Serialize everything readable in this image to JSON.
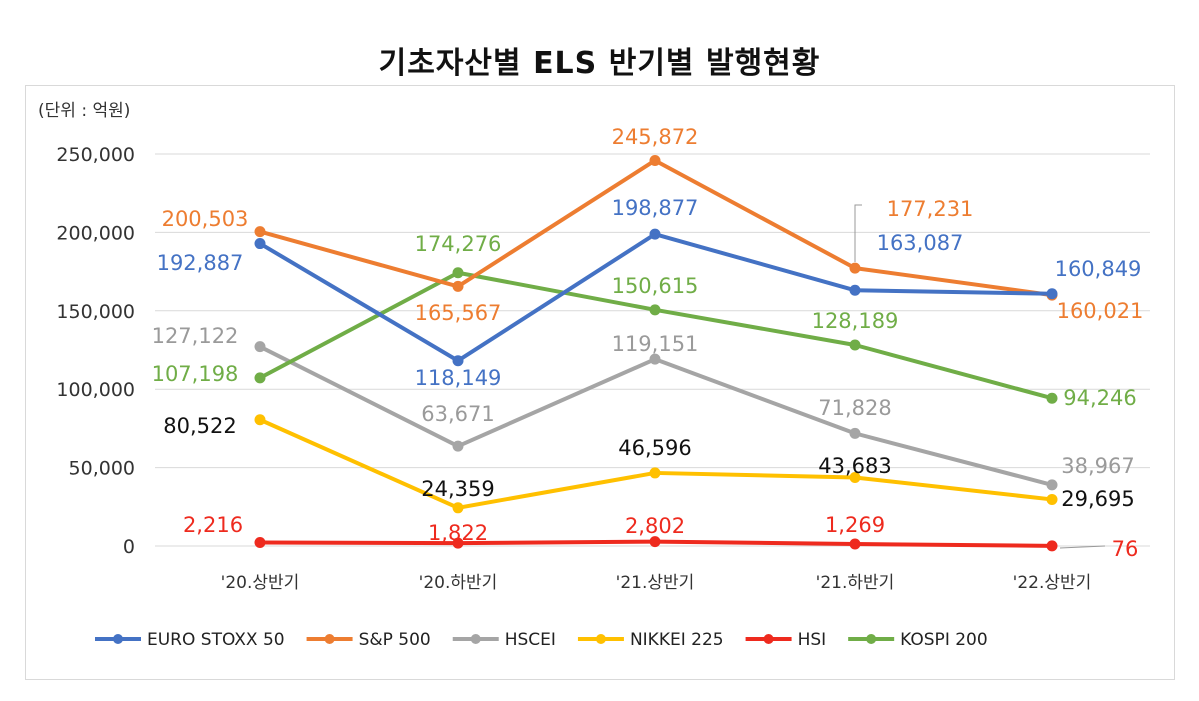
{
  "chart_data": {
    "type": "line",
    "title": "기초자산별 ELS 반기별 발행현황",
    "unit_label": "(단위 : 억원)",
    "categories": [
      "'20.상반기",
      "'20.하반기",
      "'21.상반기",
      "'21.하반기",
      "'22.상반기"
    ],
    "ylim": [
      0,
      250000
    ],
    "yticks": [
      "0",
      "50,000",
      "100,000",
      "150,000",
      "200,000",
      "250,000"
    ],
    "grid": true,
    "legend_position": "bottom",
    "series": [
      {
        "name": "EURO STOXX 50",
        "color": "#4472c4",
        "label_color": "#4472c4",
        "values": [
          192887,
          118149,
          198877,
          163087,
          160849
        ],
        "labels": [
          "192,887",
          "118,149",
          "198,877",
          "163,087",
          "160,849"
        ]
      },
      {
        "name": "S&P 500",
        "color": "#ed7d31",
        "label_color": "#ed7d31",
        "values": [
          200503,
          165567,
          245872,
          177231,
          160021
        ],
        "labels": [
          "200,503",
          "165,567",
          "245,872",
          "177,231",
          "160,021"
        ]
      },
      {
        "name": "HSCEI",
        "color": "#a5a5a5",
        "label_color": "#9a9a9a",
        "values": [
          127122,
          63671,
          119151,
          71828,
          38967
        ],
        "labels": [
          "127,122",
          "63,671",
          "119,151",
          "71,828",
          "38,967"
        ]
      },
      {
        "name": "NIKKEI 225",
        "color": "#ffc000",
        "label_color": "#111111",
        "values": [
          80522,
          24359,
          46596,
          43683,
          29695
        ],
        "labels": [
          "80,522",
          "24,359",
          "46,596",
          "43,683",
          "29,695"
        ]
      },
      {
        "name": "HSI",
        "color": "#ee2a1e",
        "label_color": "#ee2a1e",
        "values": [
          2216,
          1822,
          2802,
          1269,
          76
        ],
        "labels": [
          "2,216",
          "1,822",
          "2,802",
          "1,269",
          "76"
        ]
      },
      {
        "name": "KOSPI 200",
        "color": "#70ad47",
        "label_color": "#70ad47",
        "values": [
          107198,
          174276,
          150615,
          128189,
          94246
        ],
        "labels": [
          "107,198",
          "174,276",
          "150,615",
          "128,189",
          "94,246"
        ]
      }
    ]
  }
}
